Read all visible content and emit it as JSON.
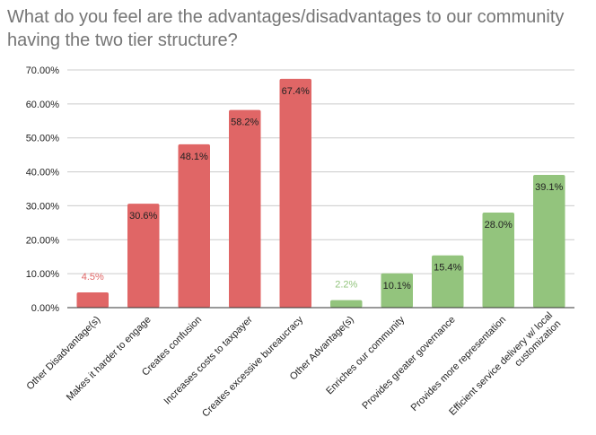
{
  "chart_data": {
    "type": "bar",
    "title": "What do you feel are the advantages/disadvantages to our community having the two tier structure?",
    "xlabel": "",
    "ylabel": "",
    "ylim": [
      0,
      70
    ],
    "yticks": [
      "0.00%",
      "10.00%",
      "20.00%",
      "30.00%",
      "40.00%",
      "50.00%",
      "60.00%",
      "70.00%"
    ],
    "grid": true,
    "legend": "none",
    "categories": [
      "Other Disadvantage(s)",
      "Makes it harder to engage",
      "Creates confusion",
      "Increases costs to taxpayer",
      "Creates excessive bureaucracy",
      "Other Advantage(s)",
      "Enriches our community",
      "Provides greater governance",
      "Provides more representation",
      "Efficient service delivery w/ local customization"
    ],
    "category_lines": [
      [
        "Other Disadvantage(s)"
      ],
      [
        "Makes it harder to engage"
      ],
      [
        "Creates confusion"
      ],
      [
        "Increases costs to taxpayer"
      ],
      [
        "Creates excessive bureaucracy"
      ],
      [
        "Other Advantage(s)"
      ],
      [
        "Enriches our community"
      ],
      [
        "Provides greater governance"
      ],
      [
        "Provides more representation"
      ],
      [
        "Efficient service delivery w/ local",
        "customization"
      ]
    ],
    "values": [
      4.5,
      30.6,
      48.1,
      58.2,
      67.4,
      2.2,
      10.1,
      15.4,
      28.0,
      39.1
    ],
    "data_labels": [
      "4.5%",
      "30.6%",
      "48.1%",
      "58.2%",
      "67.4%",
      "2.2%",
      "10.1%",
      "15.4%",
      "28.0%",
      "39.1%"
    ],
    "colors": [
      "#e06666",
      "#e06666",
      "#e06666",
      "#e06666",
      "#e06666",
      "#93c47d",
      "#93c47d",
      "#93c47d",
      "#93c47d",
      "#93c47d"
    ],
    "label_outside_color": [
      "#e06666",
      "",
      "",
      "",
      "",
      "#93c47d",
      "",
      "",
      "",
      ""
    ]
  }
}
